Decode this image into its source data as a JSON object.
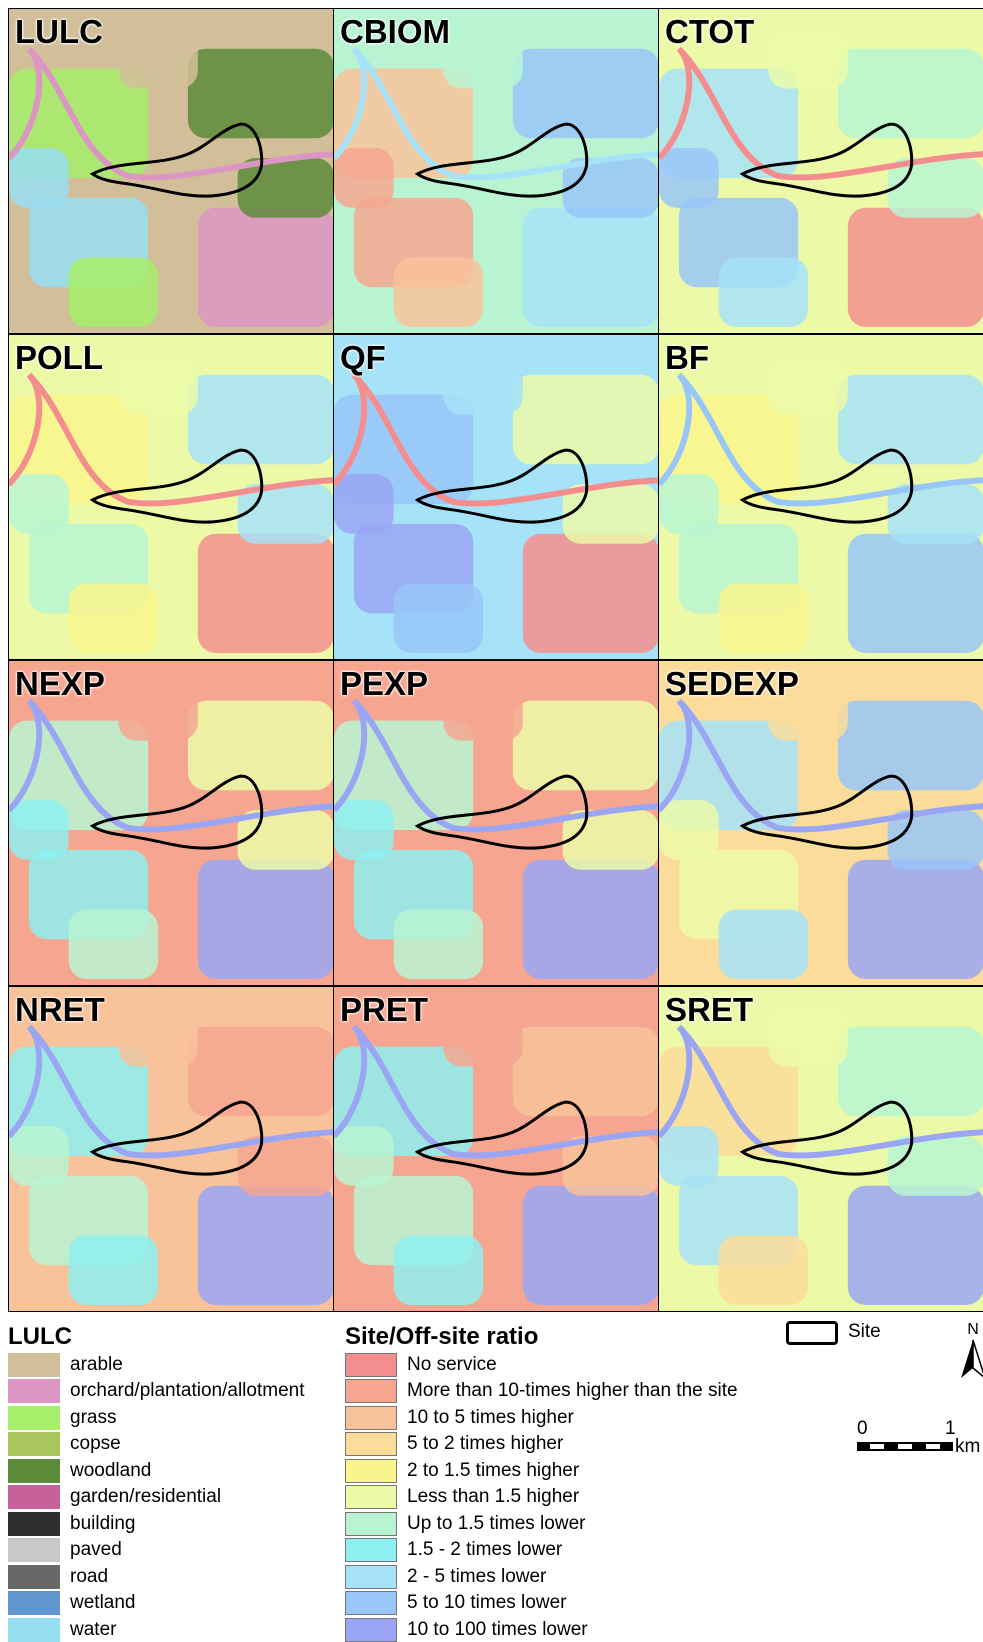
{
  "panels": [
    {
      "id": "LULC",
      "title": "LULC"
    },
    {
      "id": "CBIOM",
      "title": "CBIOM"
    },
    {
      "id": "CTOT",
      "title": "CTOT"
    },
    {
      "id": "POLL",
      "title": "POLL"
    },
    {
      "id": "QF",
      "title": "QF"
    },
    {
      "id": "BF",
      "title": "BF"
    },
    {
      "id": "NEXP",
      "title": "NEXP"
    },
    {
      "id": "PEXP",
      "title": "PEXP"
    },
    {
      "id": "SEDEXP",
      "title": "SEDEXP"
    },
    {
      "id": "NRET",
      "title": "NRET"
    },
    {
      "id": "PRET",
      "title": "PRET"
    },
    {
      "id": "SRET",
      "title": "SRET"
    }
  ],
  "lulc_legend": {
    "title": "LULC",
    "items": [
      {
        "label": "arable",
        "color": "#d2bf9a"
      },
      {
        "label": "orchard/plantation/allotment",
        "color": "#dc96c4"
      },
      {
        "label": "grass",
        "color": "#a6ef6a"
      },
      {
        "label": "copse",
        "color": "#a8c65c"
      },
      {
        "label": "woodland",
        "color": "#5d8b3a"
      },
      {
        "label": "garden/residential",
        "color": "#c8609a"
      },
      {
        "label": "building",
        "color": "#2e2e2e"
      },
      {
        "label": "paved",
        "color": "#c8c8c8"
      },
      {
        "label": "road",
        "color": "#686868"
      },
      {
        "label": "wetland",
        "color": "#5f96d0"
      },
      {
        "label": "water",
        "color": "#96def2"
      }
    ]
  },
  "ratio_legend": {
    "title": "Site/Off-site ratio",
    "items": [
      {
        "label": "No service",
        "color": "#f48e8e"
      },
      {
        "label": "More than 10-times higher than the site",
        "color": "#f6a690"
      },
      {
        "label": "10 to 5 times higher",
        "color": "#f8c29a"
      },
      {
        "label": "5 to 2 times higher",
        "color": "#fbdc9a"
      },
      {
        "label": "2 to 1.5 times higher",
        "color": "#f9f58c"
      },
      {
        "label": "Less than 1.5 higher",
        "color": "#ecfaa8"
      },
      {
        "label": "Up to 1.5 times lower",
        "color": "#b8f4d2"
      },
      {
        "label": "1.5 - 2 times lower",
        "color": "#8ef0f0"
      },
      {
        "label": "2 - 5 times lower",
        "color": "#a6e2f8"
      },
      {
        "label": "5 to 10 times lower",
        "color": "#98c6f8"
      },
      {
        "label": "10 to 100 times lower",
        "color": "#9aa6f4"
      }
    ]
  },
  "site_legend": {
    "label": "Site"
  },
  "north_arrow": {
    "label": "N"
  },
  "scale_bar": {
    "start": "0",
    "end": "1",
    "unit": "km"
  },
  "panel_colors": {
    "LULC": [
      "#d2bf9a",
      "#a6ef6a",
      "#5d8b3a",
      "#96def2",
      "#dc96c4"
    ],
    "CBIOM": [
      "#b8f4d2",
      "#f8c29a",
      "#98c6f8",
      "#f6a690",
      "#a6e2f8"
    ],
    "CTOT": [
      "#ecfaa8",
      "#a6e2f8",
      "#b8f4d2",
      "#98c6f8",
      "#f48e8e"
    ],
    "POLL": [
      "#ecfaa8",
      "#f9f58c",
      "#a6e2f8",
      "#b8f4d2",
      "#f48e8e"
    ],
    "QF": [
      "#a6e2f8",
      "#98c6f8",
      "#ecfaa8",
      "#9aa6f4",
      "#f48e8e"
    ],
    "BF": [
      "#ecfaa8",
      "#f9f58c",
      "#a6e2f8",
      "#b8f4d2",
      "#98c6f8"
    ],
    "NEXP": [
      "#f6a690",
      "#b8f4d2",
      "#ecfaa8",
      "#8ef0f0",
      "#9aa6f4"
    ],
    "PEXP": [
      "#f6a690",
      "#b8f4d2",
      "#ecfaa8",
      "#8ef0f0",
      "#9aa6f4"
    ],
    "SEDEXP": [
      "#fbdc9a",
      "#a6e2f8",
      "#98c6f8",
      "#ecfaa8",
      "#9aa6f4"
    ],
    "NRET": [
      "#f8c29a",
      "#8ef0f0",
      "#f6a690",
      "#b8f4d2",
      "#9aa6f4"
    ],
    "PRET": [
      "#f6a690",
      "#8ef0f0",
      "#f8c29a",
      "#b8f4d2",
      "#9aa6f4"
    ],
    "SRET": [
      "#ecfaa8",
      "#fbdc9a",
      "#b8f4d2",
      "#a6e2f8",
      "#9aa6f4"
    ]
  }
}
